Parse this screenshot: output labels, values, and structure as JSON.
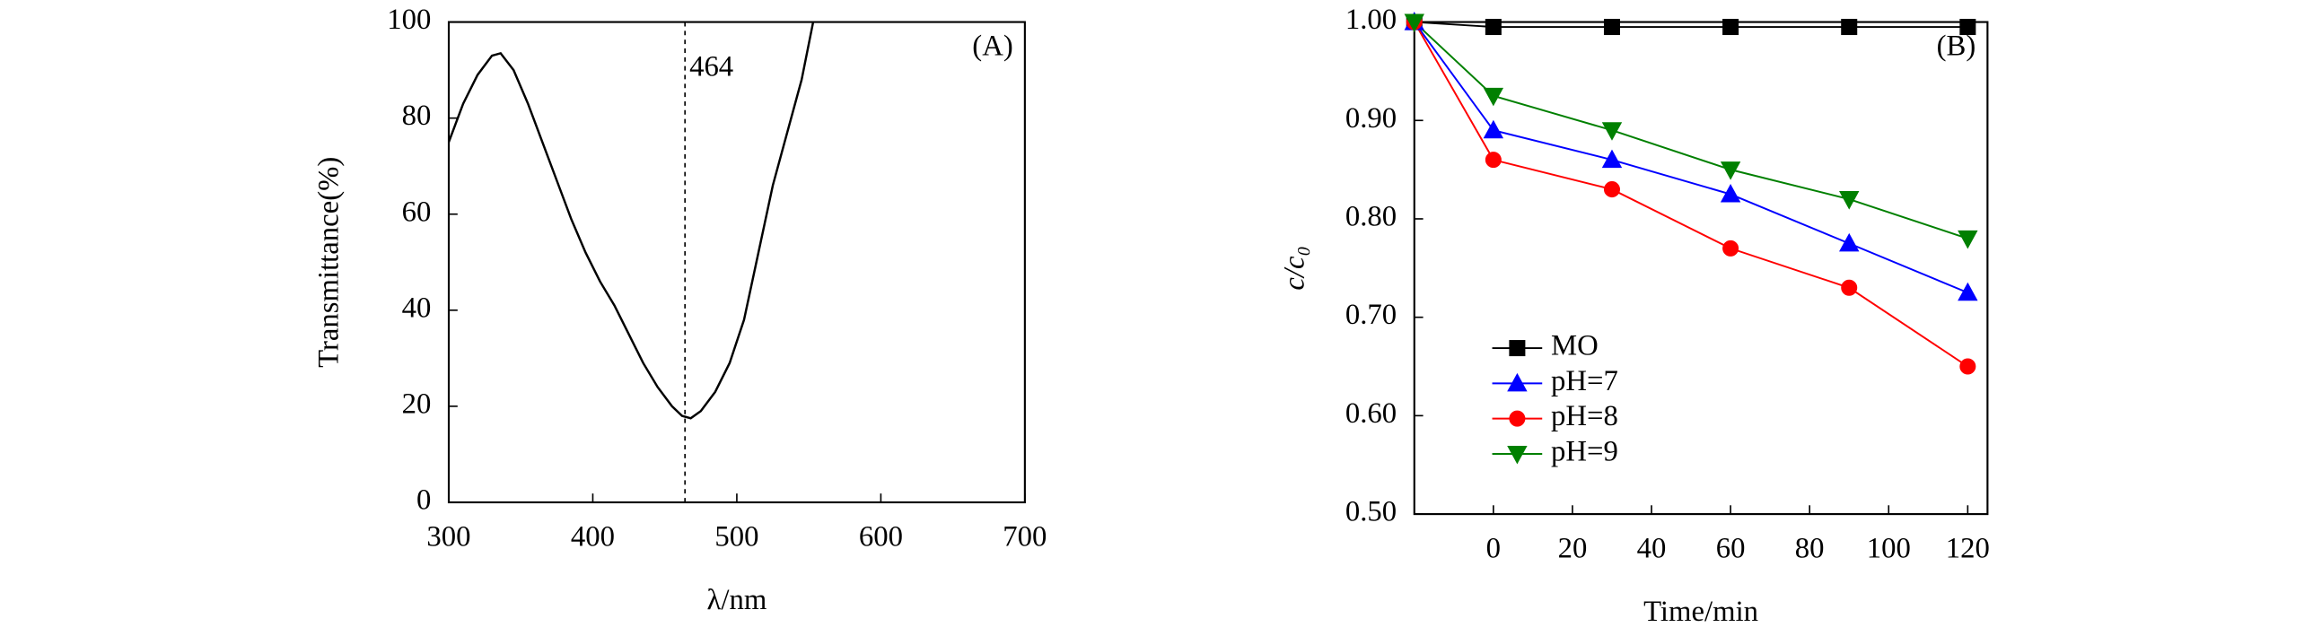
{
  "chart_data": [
    {
      "type": "line",
      "panel_label": "(A)",
      "xlabel": "λ/nm",
      "ylabel": "Transmittance(%)",
      "xlim": [
        300,
        700
      ],
      "xticks": [
        300,
        400,
        500,
        600,
        700
      ],
      "ylim": [
        0,
        100
      ],
      "yticks": [
        0,
        20,
        40,
        60,
        80,
        100
      ],
      "vline": {
        "value": 464,
        "label": "464"
      },
      "series": [
        {
          "color": "#000000",
          "x": [
            300,
            310,
            320,
            330,
            336,
            345,
            355,
            365,
            375,
            385,
            395,
            405,
            415,
            425,
            435,
            445,
            455,
            462,
            468,
            475,
            485,
            495,
            505,
            515,
            525,
            535,
            545,
            553
          ],
          "values": [
            75,
            83,
            89,
            93,
            93.5,
            90,
            83,
            75,
            67,
            59,
            52,
            46,
            41,
            35,
            29,
            24,
            20,
            18,
            17.5,
            19,
            23,
            29,
            38,
            52,
            66,
            77,
            88,
            100
          ]
        }
      ]
    },
    {
      "type": "line",
      "panel_label": "(B)",
      "xlabel": "Time/min",
      "ylabel": "c/c₀",
      "xlim": [
        -20,
        125
      ],
      "xticks": [
        0,
        20,
        40,
        60,
        80,
        100,
        120
      ],
      "ylim": [
        0.5,
        1.0
      ],
      "yticks": [
        {
          "value": 0.5,
          "label": "0.50"
        },
        {
          "value": 0.6,
          "label": "0.60"
        },
        {
          "value": 0.7,
          "label": "0.70"
        },
        {
          "value": 0.8,
          "label": "0.80"
        },
        {
          "value": 0.9,
          "label": "0.90"
        },
        {
          "value": 1.0,
          "label": "1.00"
        }
      ],
      "x": [
        -20,
        0,
        30,
        60,
        90,
        120
      ],
      "series": [
        {
          "name": "MO",
          "color": "#000000",
          "marker": "square",
          "values": [
            1.0,
            0.995,
            0.995,
            0.995,
            0.995,
            0.995
          ]
        },
        {
          "name": "pH=7",
          "color": "#0000ff",
          "marker": "triangle-up",
          "values": [
            1.0,
            0.89,
            0.86,
            0.825,
            0.775,
            0.725
          ]
        },
        {
          "name": "pH=8",
          "color": "#ff0000",
          "marker": "circle",
          "values": [
            1.0,
            0.86,
            0.83,
            0.77,
            0.73,
            0.65
          ]
        },
        {
          "name": "pH=9",
          "color": "#008000",
          "marker": "triangle-down",
          "values": [
            1.0,
            0.925,
            0.89,
            0.85,
            0.82,
            0.78
          ]
        }
      ]
    }
  ]
}
